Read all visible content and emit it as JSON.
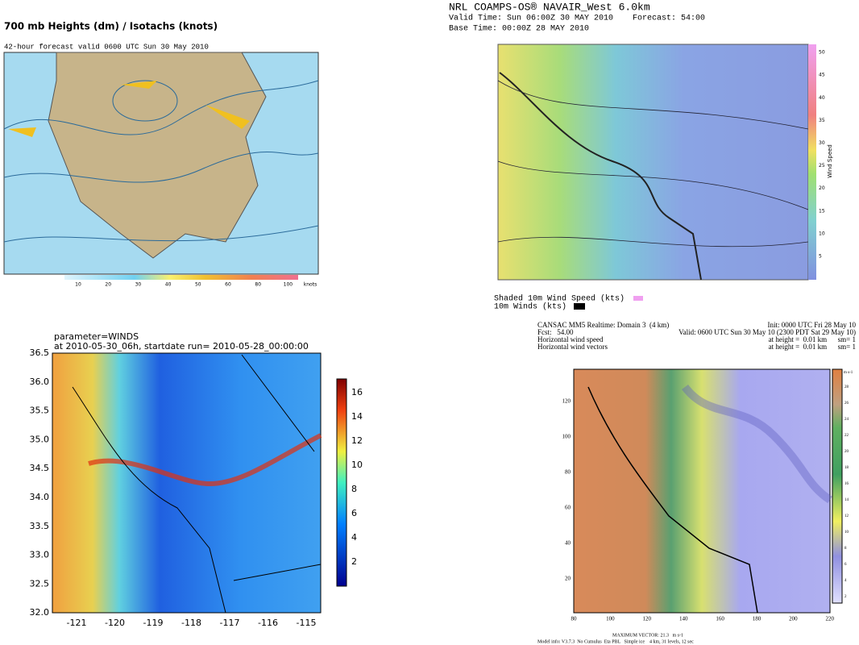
{
  "panels": [
    {
      "title": "700 mb Heights (dm) / Isotachs (knots)",
      "subtitle": "42-hour forecast valid 0600 UTC Sun 30 May 2010",
      "colorbar_labels": [
        "10",
        "20",
        "30",
        "40",
        "50",
        "60",
        "80",
        "100"
      ],
      "colorbar_unit": "knots"
    },
    {
      "lines": [
        "NRL COAMPS-OS® NAVAIR_West 6.0km",
        "Valid Time: Sun 06:00Z 30 MAY 2010    Forecast: 54:00",
        "Base Time: 00:00Z 28 MAY 2010"
      ],
      "colorbar_labels": [
        "5",
        "10",
        "15",
        "20",
        "25",
        "30",
        "35",
        "40",
        "45",
        "50"
      ],
      "colorbar_title": "Wind Speed",
      "legend": [
        "Shaded 10m Wind Speed (kts)",
        "10m Winds (kts)"
      ]
    },
    {
      "lines": [
        "parameter=WINDS",
        "at 2010-05-30_06h, startdate run= 2010-05-28_00:00:00"
      ],
      "yticks": [
        "36.5",
        "36.0",
        "35.5",
        "35.0",
        "34.5",
        "34.0",
        "33.5",
        "33.0",
        "32.5",
        "32.0"
      ],
      "xticks": [
        "-121",
        "-120",
        "-119",
        "-118",
        "-117",
        "-116",
        "-115"
      ],
      "colorbar_labels": [
        "2",
        "4",
        "6",
        "8",
        "10",
        "12",
        "14",
        "16"
      ]
    },
    {
      "header_left": [
        "CANSAC MM5 Realtime: Domain 3  (4 km)",
        "Fcst:   54.00",
        "Horizontal wind speed",
        "Horizontal wind vectors"
      ],
      "header_right": [
        "Init: 0000 UTC Fri 28 May 10",
        "Valid: 0600 UTC Sun 30 May 10 (2300 PDT Sat 29 May 10)",
        "at height =  0.01 km      sm= 1",
        "at height =  0.01 km      sm= 1"
      ],
      "yticks": [
        "20",
        "40",
        "60",
        "80",
        "100",
        "120"
      ],
      "xticks": [
        "80",
        "100",
        "120",
        "140",
        "160",
        "180",
        "200",
        "220"
      ],
      "colorbar_unit": "m s-1",
      "colorbar_labels": [
        "28",
        "26",
        "24",
        "22",
        "20",
        "18",
        "16",
        "14",
        "12",
        "10",
        "8",
        "6",
        "4",
        "2"
      ],
      "footer": [
        "MAXIMUM VECTOR: 21.3   m s-1",
        "Model info: V3.7.3  No Cumulus  Eta PBL   Simple ice    4 km, 31 levels, 12 sec"
      ]
    }
  ]
}
